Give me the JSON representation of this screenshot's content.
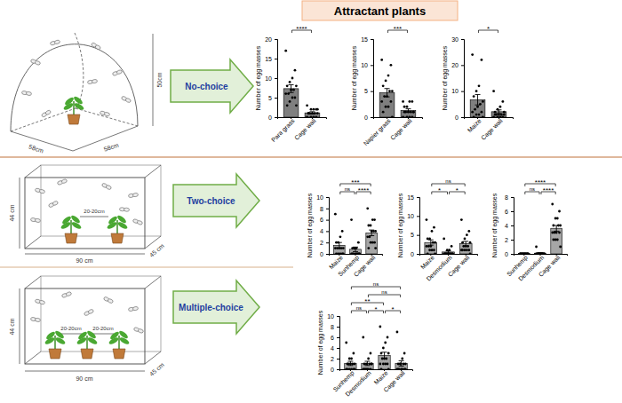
{
  "header": {
    "title": "Attractant plants"
  },
  "rows": [
    {
      "label": "No-choice",
      "dims": [
        "50cm",
        "58cm",
        "58cm"
      ]
    },
    {
      "label": "Two-choice",
      "dims": [
        "44 cm",
        "90 cm",
        "45 cm",
        "20-20cm"
      ]
    },
    {
      "label": "Multiple-choice",
      "dims": [
        "44 cm",
        "90 cm",
        "45 cm",
        "20-20cm",
        "20-20cm"
      ]
    }
  ],
  "chart_data": [
    {
      "type": "bar",
      "ylabel": "Number of egg masses",
      "categories": [
        "Para grass",
        "Cage wall"
      ],
      "values": [
        7.3,
        1.1
      ],
      "errors": [
        1.0,
        0.3
      ],
      "color": "#7f7f7f",
      "points": [
        [
          17,
          12,
          10,
          9,
          8,
          8,
          7,
          7,
          6,
          6,
          5,
          5,
          4,
          3,
          3
        ],
        [
          3,
          2,
          2,
          2,
          1,
          1,
          1,
          1,
          1,
          0,
          0,
          0,
          0,
          1,
          2
        ]
      ],
      "ylim": [
        0,
        20
      ],
      "yticks": [
        0,
        5,
        10,
        15,
        20
      ],
      "comparisons": [
        {
          "between": [
            "Para grass",
            "Cage wall"
          ],
          "label": "****"
        }
      ]
    },
    {
      "type": "bar",
      "ylabel": "Number of egg masses",
      "categories": [
        "Napier grass",
        "Cage wall"
      ],
      "values": [
        4.7,
        1.3
      ],
      "errors": [
        0.8,
        0.3
      ],
      "color": "#7f7f7f",
      "points": [
        [
          11,
          10,
          8,
          7,
          6,
          5,
          5,
          4,
          4,
          3,
          3,
          2,
          2,
          1,
          0
        ],
        [
          3,
          3,
          3,
          2,
          2,
          1,
          1,
          1,
          1,
          0,
          0,
          0,
          0,
          1,
          1
        ]
      ],
      "ylim": [
        0,
        15
      ],
      "yticks": [
        0,
        5,
        10,
        15
      ],
      "comparisons": [
        {
          "between": [
            "Napier grass",
            "Cage wall"
          ],
          "label": "***"
        }
      ]
    },
    {
      "type": "bar",
      "ylabel": "Number of egg masses",
      "categories": [
        "Maize",
        "Cage wall"
      ],
      "values": [
        6.7,
        2.1
      ],
      "errors": [
        2.0,
        0.7
      ],
      "color": "#7f7f7f",
      "points": [
        [
          24,
          22,
          12,
          10,
          8,
          6,
          5,
          4,
          3,
          2,
          2,
          1,
          1,
          0,
          0
        ],
        [
          10,
          6,
          4,
          3,
          2,
          2,
          1,
          1,
          1,
          0,
          0,
          0,
          0,
          1,
          1
        ]
      ],
      "ylim": [
        0,
        30
      ],
      "yticks": [
        0,
        10,
        20,
        30
      ],
      "comparisons": [
        {
          "between": [
            "Maize",
            "Cage wall"
          ],
          "label": "*"
        }
      ]
    },
    {
      "type": "bar",
      "ylabel": "Number of egg masses",
      "categories": [
        "Maize",
        "Sunhemp",
        "Cage wall"
      ],
      "values": [
        1.5,
        0.8,
        3.7
      ],
      "errors": [
        0.5,
        0.4,
        0.5
      ],
      "color": "#a6a6a6",
      "points": [
        [
          7,
          4,
          3,
          2,
          2,
          1,
          1,
          1,
          1,
          1,
          0,
          0,
          0,
          0,
          0
        ],
        [
          6,
          2,
          1,
          1,
          1,
          0,
          0,
          0,
          0,
          0,
          0,
          0,
          1,
          0,
          0
        ],
        [
          8,
          6,
          6,
          5,
          5,
          4,
          4,
          4,
          3,
          3,
          2,
          2,
          2,
          1,
          1
        ]
      ],
      "ylim": [
        0,
        10
      ],
      "yticks": [
        0,
        2,
        4,
        6,
        8,
        10
      ],
      "comparisons": [
        {
          "between": [
            "Maize",
            "Sunhemp"
          ],
          "label": "ns"
        },
        {
          "between": [
            "Sunhemp",
            "Cage wall"
          ],
          "label": "****"
        },
        {
          "between": [
            "Maize",
            "Cage wall"
          ],
          "label": "***"
        }
      ]
    },
    {
      "type": "bar",
      "ylabel": "Number of egg masses",
      "categories": [
        "Maize",
        "Desmodium",
        "Cage wall"
      ],
      "values": [
        3.0,
        0.5,
        2.7
      ],
      "errors": [
        0.7,
        0.3,
        0.6
      ],
      "color": "#a6a6a6",
      "points": [
        [
          9,
          7,
          6,
          4,
          4,
          3,
          3,
          2,
          2,
          2,
          1,
          1,
          1,
          0,
          0
        ],
        [
          4,
          2,
          1,
          1,
          0,
          0,
          0,
          0,
          0,
          0,
          0,
          0,
          0,
          0,
          0
        ],
        [
          9,
          6,
          5,
          4,
          3,
          3,
          2,
          2,
          2,
          1,
          1,
          1,
          1,
          1,
          0
        ]
      ],
      "ylim": [
        0,
        15
      ],
      "yticks": [
        0,
        5,
        10,
        15
      ],
      "comparisons": [
        {
          "between": [
            "Maize",
            "Desmodium"
          ],
          "label": "*"
        },
        {
          "between": [
            "Desmodium",
            "Cage wall"
          ],
          "label": "*"
        },
        {
          "between": [
            "Maize",
            "Cage wall"
          ],
          "label": "ns"
        }
      ]
    },
    {
      "type": "bar",
      "ylabel": "Number of egg masses",
      "categories": [
        "Sunhemp",
        "Desmodium",
        "Cage wall"
      ],
      "values": [
        0.05,
        0.1,
        3.6
      ],
      "errors": [
        0.05,
        0.07,
        0.4
      ],
      "color": "#a6a6a6",
      "points": [
        [
          0,
          0,
          0,
          0,
          0,
          0,
          0,
          0,
          0,
          0,
          0,
          0,
          0,
          0,
          0
        ],
        [
          1,
          0,
          0,
          0,
          0,
          0,
          0,
          0,
          0,
          0,
          0,
          0,
          0,
          0,
          0
        ],
        [
          7,
          6,
          5,
          5,
          4,
          4,
          4,
          3,
          3,
          3,
          3,
          2,
          2,
          2,
          1
        ]
      ],
      "ylim": [
        0,
        8
      ],
      "yticks": [
        0,
        2,
        4,
        6,
        8
      ],
      "comparisons": [
        {
          "between": [
            "Sunhemp",
            "Desmodium"
          ],
          "label": "ns"
        },
        {
          "between": [
            "Desmodium",
            "Cage wall"
          ],
          "label": "****"
        },
        {
          "between": [
            "Sunhemp",
            "Cage wall"
          ],
          "label": "****"
        }
      ]
    },
    {
      "type": "bar",
      "ylabel": "Number of egg masses",
      "categories": [
        "Sunhemp",
        "Desmodium",
        "Maize",
        "Cage wall"
      ],
      "values": [
        1.1,
        1.1,
        2.6,
        1.1
      ],
      "errors": [
        0.4,
        0.4,
        0.6,
        0.5
      ],
      "color": "#a6a6a6",
      "points": [
        [
          5,
          3,
          2,
          2,
          1,
          1,
          1,
          1,
          1,
          0,
          0,
          0,
          0,
          0,
          0
        ],
        [
          6,
          3,
          2,
          1,
          1,
          1,
          1,
          0,
          0,
          0,
          0,
          0,
          0,
          0,
          1
        ],
        [
          8,
          6,
          5,
          4,
          3,
          3,
          2,
          2,
          2,
          1,
          1,
          1,
          1,
          0,
          0
        ],
        [
          7,
          3,
          2,
          1,
          1,
          1,
          1,
          0,
          0,
          0,
          0,
          0,
          1,
          0,
          0
        ]
      ],
      "ylim": [
        0,
        10
      ],
      "yticks": [
        0,
        2,
        4,
        6,
        8,
        10
      ],
      "comparisons": [
        {
          "between": [
            "Sunhemp",
            "Desmodium"
          ],
          "label": "ns"
        },
        {
          "between": [
            "Desmodium",
            "Maize"
          ],
          "label": "*"
        },
        {
          "between": [
            "Maize",
            "Cage wall"
          ],
          "label": "*"
        },
        {
          "between": [
            "Sunhemp",
            "Maize"
          ],
          "label": "**"
        },
        {
          "between": [
            "Desmodium",
            "Cage wall"
          ],
          "label": "ns"
        },
        {
          "between": [
            "Sunhemp",
            "Cage wall"
          ],
          "label": "ns"
        }
      ]
    }
  ]
}
